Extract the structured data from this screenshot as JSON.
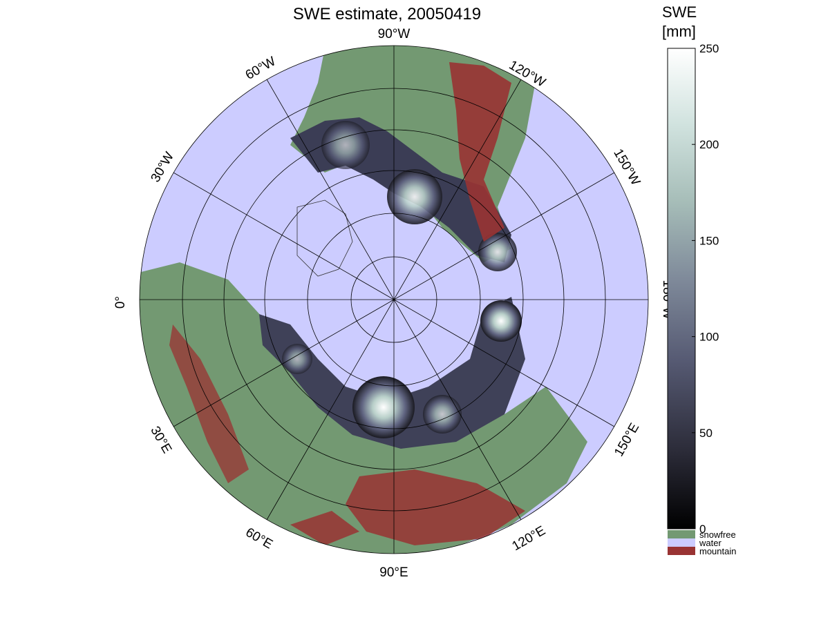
{
  "title": "SWE estimate, 20050419",
  "colorbar": {
    "label_line1": "SWE",
    "label_line2": "[mm]",
    "min": 0,
    "max": 250,
    "ticks": [
      "250",
      "200",
      "150",
      "100",
      "50",
      "0"
    ],
    "gradient_colors": [
      "#000000",
      "#2b2b38",
      "#565a73",
      "#7f8a9a",
      "#a6bdb8",
      "#d0e2de",
      "#ffffff"
    ]
  },
  "categories": [
    {
      "label": "snowfree",
      "color": "#739972"
    },
    {
      "label": "water",
      "color": "#ccccff"
    },
    {
      "label": "mountain",
      "color": "#993333"
    }
  ],
  "map": {
    "projection": "north polar stereographic",
    "ocean_color": "#ccccff",
    "longitude_labels": {
      "w90": "90°W",
      "w60": "60°W",
      "w30": "30°W",
      "w0": "0°",
      "w120": "120°W",
      "w150": "150°W",
      "w180": "180°W",
      "e30": "30°E",
      "e60": "60°E",
      "e90": "90°E",
      "e120": "120°E",
      "e150": "150°E"
    }
  }
}
